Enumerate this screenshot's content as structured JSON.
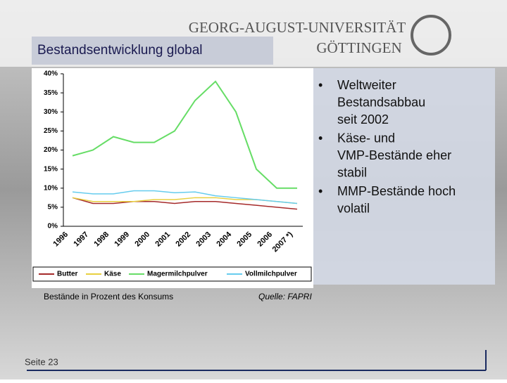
{
  "header": {
    "university": "GEORG-AUGUST-UNIVERSITÄT",
    "city": "GÖTTINGEN",
    "title": "Bestandsentwicklung global"
  },
  "bullets": [
    "Weltweiter Bestandsabbau seit 2002",
    "Käse- und VMP-Bestände eher stabil",
    "MMP-Bestände hoch volatil"
  ],
  "footer": {
    "page": "Seite 23"
  },
  "chart_data": {
    "type": "line",
    "note": "Bestände in Prozent des Konsums",
    "source": "Quelle: FAPRI",
    "categories": [
      "1996",
      "1997",
      "1998",
      "1999",
      "2000",
      "2001",
      "2002",
      "2003",
      "2004",
      "2005",
      "2006",
      "2007 *)"
    ],
    "series": [
      {
        "name": "Butter",
        "color": "#a52a2a",
        "values": [
          7.5,
          6,
          6,
          6.5,
          6.5,
          6,
          6.5,
          6.5,
          6,
          5.5,
          5,
          4.5
        ]
      },
      {
        "name": "Käse",
        "color": "#e8d040",
        "values": [
          7.5,
          6.5,
          6.5,
          6.5,
          7,
          7,
          7.5,
          7.5,
          7,
          7,
          6.5,
          6
        ]
      },
      {
        "name": "Magermilchpulver",
        "color": "#66dd66",
        "values": [
          18.5,
          20,
          23.5,
          22,
          22,
          25,
          33,
          38,
          30,
          15,
          10,
          10
        ]
      },
      {
        "name": "Vollmilchpulver",
        "color": "#66ccee",
        "values": [
          9,
          8.5,
          8.5,
          9.3,
          9.3,
          8.8,
          9,
          8,
          7.5,
          7,
          6.5,
          6
        ]
      }
    ],
    "ylim": [
      0,
      40
    ],
    "yticks": [
      {
        "value": 0,
        "label": "0%"
      },
      {
        "value": 5,
        "label": "5%"
      },
      {
        "value": 10,
        "label": "10%"
      },
      {
        "value": 15,
        "label": "15%"
      },
      {
        "value": 20,
        "label": "20%"
      },
      {
        "value": 25,
        "label": "25%"
      },
      {
        "value": 30,
        "label": "30%"
      },
      {
        "value": 35,
        "label": "35%"
      },
      {
        "value": 40,
        "label": "40%"
      }
    ]
  }
}
